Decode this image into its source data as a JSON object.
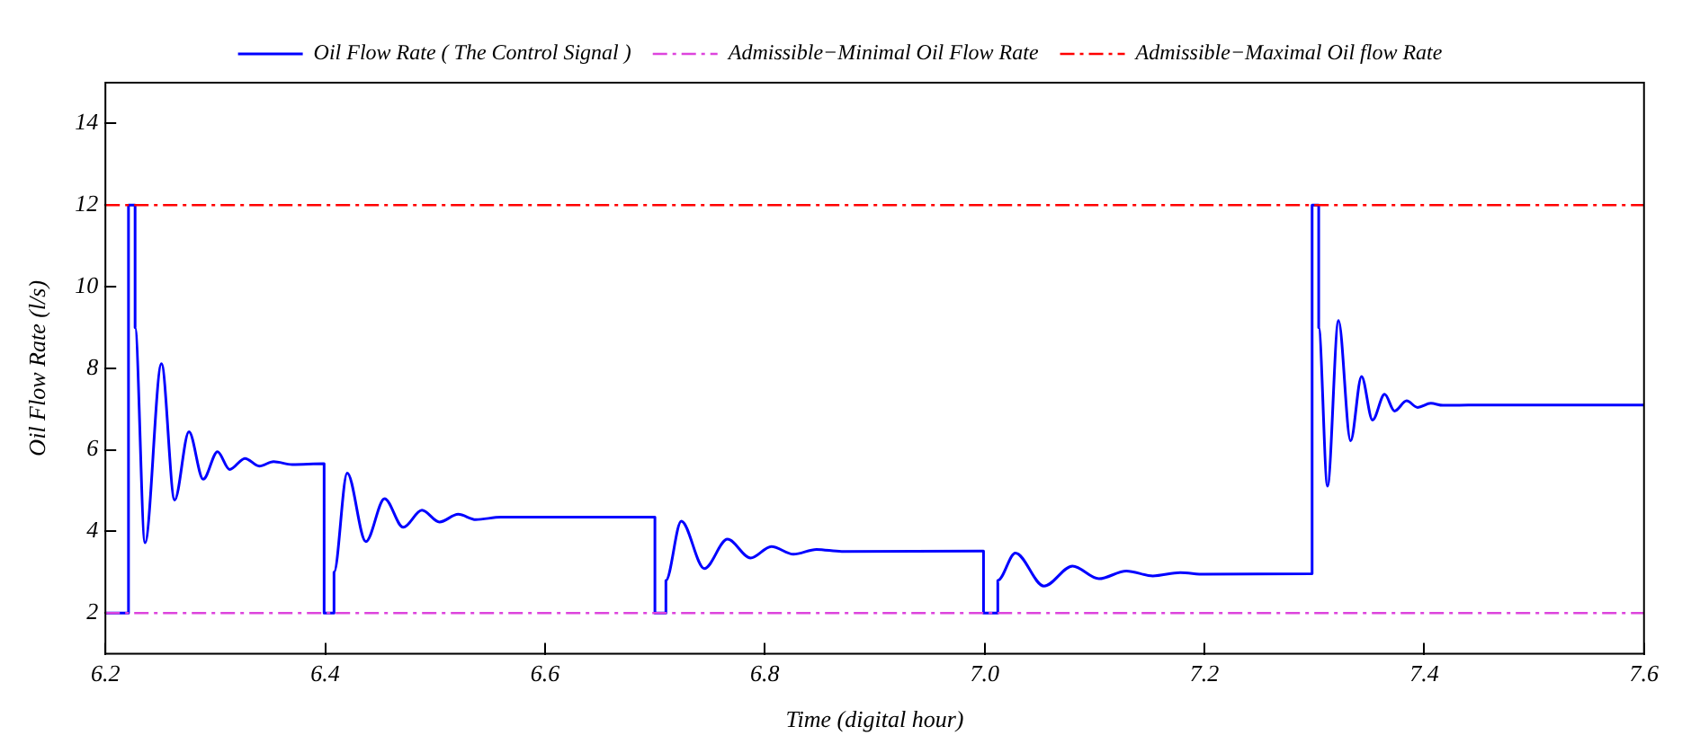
{
  "chart_data": {
    "type": "line",
    "xlabel": "Time (digital hour)",
    "ylabel": "Oil Flow Rate (l/s)",
    "xlim": [
      6.2,
      7.6
    ],
    "xticks": [
      {
        "value": 6.2,
        "label": "6.2"
      },
      {
        "value": 6.4,
        "label": "6.4"
      },
      {
        "value": 6.6,
        "label": "6.6"
      },
      {
        "value": 6.8,
        "label": "6.8"
      },
      {
        "value": 7.0,
        "label": "7.0"
      },
      {
        "value": 7.2,
        "label": "7.2"
      },
      {
        "value": 7.4,
        "label": "7.4"
      },
      {
        "value": 7.6,
        "label": "7.6"
      }
    ],
    "ylim": [
      1,
      15
    ],
    "yticks": [
      2,
      4,
      6,
      8,
      10,
      12,
      14
    ],
    "grid": false,
    "legend": "top",
    "line_style": "solid",
    "marker": "none",
    "series": [
      {
        "name": "Oil Flow Rate ( The Control Signal )",
        "color": "#0000ff",
        "x": [
          6.2,
          6.221,
          6.221,
          6.227,
          6.227,
          6.236,
          6.251,
          6.263,
          6.276,
          6.289,
          6.302,
          6.313,
          6.327,
          6.34,
          6.353,
          6.37,
          6.399,
          6.399,
          6.408,
          6.408,
          6.42,
          6.437,
          6.454,
          6.471,
          6.488,
          6.504,
          6.521,
          6.537,
          6.56,
          6.7,
          6.7,
          6.71,
          6.71,
          6.724,
          6.745,
          6.766,
          6.787,
          6.806,
          6.826,
          6.847,
          6.87,
          6.999,
          6.999,
          7.012,
          7.012,
          7.028,
          7.054,
          7.08,
          7.104,
          7.129,
          7.153,
          7.178,
          7.2,
          7.298,
          7.298,
          7.304,
          7.304,
          7.312,
          7.322,
          7.333,
          7.343,
          7.353,
          7.364,
          7.373,
          7.384,
          7.394,
          7.406,
          7.417,
          7.44,
          7.6
        ],
        "values": [
          2,
          2,
          12,
          12,
          9,
          3.72,
          8.11,
          4.77,
          6.44,
          5.28,
          5.95,
          5.52,
          5.79,
          5.6,
          5.71,
          5.64,
          5.66,
          2,
          2,
          3,
          5.43,
          3.75,
          4.8,
          4.1,
          4.52,
          4.23,
          4.42,
          4.29,
          4.35,
          4.35,
          2,
          2,
          2.8,
          4.25,
          3.09,
          3.81,
          3.35,
          3.63,
          3.44,
          3.56,
          3.51,
          3.52,
          2,
          2,
          2.8,
          3.47,
          2.66,
          3.15,
          2.84,
          3.03,
          2.91,
          2.99,
          2.95,
          2.96,
          12,
          12,
          9,
          5.11,
          9.17,
          6.22,
          7.8,
          6.73,
          7.36,
          6.95,
          7.2,
          7.04,
          7.14,
          7.09,
          7.1,
          7.1
        ]
      }
    ],
    "ref_lines": [
      {
        "axis": "y",
        "value": 2,
        "label": "Admissible−Minimal Oil Flow Rate",
        "color": "#dd44dd",
        "line_style": "dashed"
      },
      {
        "axis": "y",
        "value": 12,
        "label": "Admissible−Maximal Oil flow Rate",
        "color": "#ff0000",
        "line_style": "dashed"
      }
    ]
  }
}
